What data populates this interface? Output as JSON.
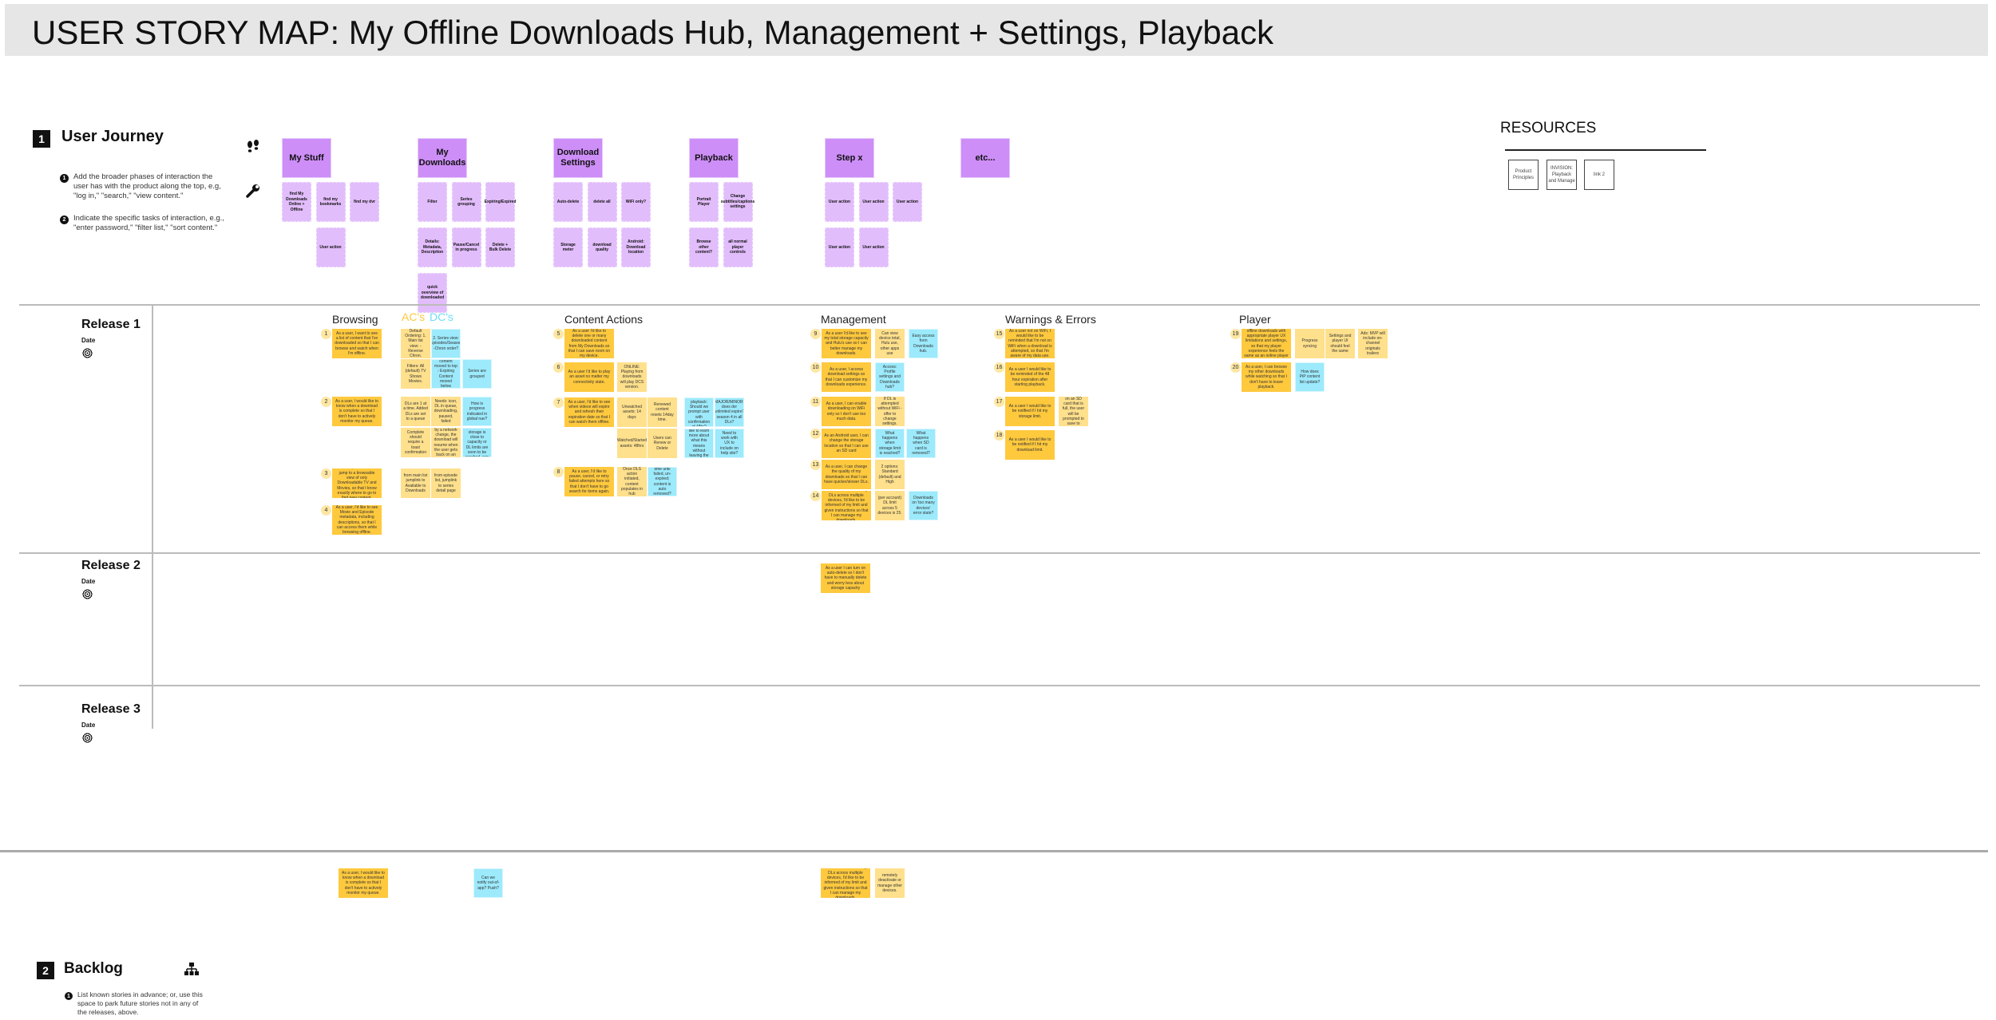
{
  "title": "USER STORY MAP: My Offline Downloads Hub, Management + Settings, Playback",
  "journey": {
    "number": "1",
    "title": "User Journey",
    "instructions": [
      {
        "n": "1",
        "text": "Add the broader phases of interaction the user has with the product along the top, e.g, \"log in,\" \"search,\" \"view content.\""
      },
      {
        "n": "2",
        "text": "Indicate the specific tasks of interaction, e.g., \"enter password,\" \"filter list,\" \"sort content.\""
      }
    ],
    "icons": [
      "footsteps-icon",
      "wrench-icon"
    ],
    "phases": [
      {
        "title": "My Stuff",
        "tasks": [
          "find My Downloads Online + Offline",
          "find my bookmarks",
          "find my dvr",
          "User action"
        ]
      },
      {
        "title": "My Downloads",
        "tasks": [
          "Filter",
          "Series grouping",
          "Expiring/Expired",
          "Details: Metadata, Description",
          "Pause/Cancel in progress",
          "Delete + Bulk Delete",
          "quick overview of downloaded"
        ]
      },
      {
        "title": "Download Settings",
        "tasks": [
          "Auto-delete",
          "delete all",
          "WiFi only?",
          "Storage meter",
          "download quality",
          "Android: Download location"
        ]
      },
      {
        "title": "Playback",
        "tasks": [
          "Portrait Player",
          "Change subtitles/captions settings",
          "Browse other content?",
          "all normal player controls"
        ]
      },
      {
        "title": "Step x",
        "tasks": [
          "User action",
          "User action",
          "User action",
          "User action",
          "User action"
        ]
      },
      {
        "title": "etc...",
        "tasks": []
      }
    ]
  },
  "resources": {
    "title": "RESOURCES",
    "links": [
      "Product Principles",
      "INVISION: Playback and Manage",
      "link 2"
    ]
  },
  "releases": [
    {
      "name": "Release 1",
      "date_label": "Date"
    },
    {
      "name": "Release 2",
      "date_label": "Date"
    },
    {
      "name": "Release 3",
      "date_label": "Date"
    }
  ],
  "legend": {
    "ac_label": "AC's",
    "dc_label": "DC's",
    "ac_color": "#ffc93e",
    "dc_color": "#6fdcf7"
  },
  "release1": {
    "sections": [
      {
        "title": "Browsing",
        "stories": [
          {
            "num": "1",
            "text": "As a user, I want to see a list of content that I've downloaded so that I can browse and watch when I'm offline.",
            "notes": [
              {
                "type": "ac",
                "text": "Default Ordering: 1. Main list view: - Reverse Chron."
              },
              {
                "type": "dc",
                "text": "2. Series view: Episodes/Season -Chron order?"
              },
              {
                "type": "ac",
                "text": "Filters: All (default) TV Shows Movies."
              },
              {
                "type": "dc",
                "text": "- Expired content moved to top - Expiring Content moved below Expired."
              },
              {
                "type": "dc",
                "text": "Series are grouped"
              }
            ]
          },
          {
            "num": "2",
            "text": "As a user, I would like to know when a download is complete so that I don't have to actively monitor my queue.",
            "notes": [
              {
                "type": "ac",
                "text": "DLs are 1 at a time. Added DLs are set to a queue"
              },
              {
                "type": "ac",
                "text": "Needs: icon, DL in queue, downloading, paused, failed"
              },
              {
                "type": "dc",
                "text": "How is progress indicated in global nav?"
              },
              {
                "type": "ac",
                "text": "Complete should require a toast confirmation"
              },
              {
                "type": "ac",
                "text": "If a download is interrupted by a network change, the download will resume when the user gets back on an eligible network."
              },
              {
                "type": "dc",
                "text": "(major gotcha): if storage is close to capacity or DL limits are soon to be reached, can we tell user?"
              }
            ]
          },
          {
            "num": "3",
            "text": "As a user, I would like to jump to a browsable view of only Downloadable TV and Movies, so that I know exactly where to go to find new content.",
            "notes": [
              {
                "type": "ac",
                "text": "from main list jumplink to Available to Downloads"
              },
              {
                "type": "ac",
                "text": "from episode list, jumplink to series detail page"
              }
            ]
          },
          {
            "num": "4",
            "text": "As a user, I'd like to see Movie and Episode metadata, including descriptions, so that I can access them while browsing offline.",
            "notes": []
          }
        ]
      },
      {
        "title": "Content Actions",
        "stories": [
          {
            "num": "5",
            "text": "As a user I'd like to delete one or many downloaded content from My Downloads so that I can save room on my device.",
            "notes": []
          },
          {
            "num": "6",
            "text": "As a user I'd like to play an asset no matter my connectivity state.",
            "notes": [
              {
                "type": "ac",
                "text": "ONLINE: Playing from downloads will play DCS version."
              }
            ]
          },
          {
            "num": "7",
            "text": "As a user, I'd like to see when videos will expire and refresh their expiration date so that I can watch them offline.",
            "notes": [
              {
                "type": "ac",
                "text": "Unwatched assets: 14 days"
              },
              {
                "type": "ac",
                "text": "Renewed content resets 14day time."
              },
              {
                "type": "ac",
                "text": "Watched/Started assets: 48hrs"
              },
              {
                "type": "ac",
                "text": "Users can Renew or Delete"
              },
              {
                "type": "dc",
                "text": "1st time playback: Should we prompt user with confirmation of 48hr?"
              },
              {
                "type": "dc",
                "text": "[MAJOR/MINOR]: does dvr unlimited expire? season 4 in all DLs?"
              },
              {
                "type": "dc",
                "text": "As a user, I'd like to learn more about what this means without leaving the app."
              },
              {
                "type": "dc",
                "text": "Need to work with UX to include on help site?"
              }
            ]
          },
          {
            "num": "8",
            "text": "As a user, I'd like to pause, cancel, or retry failed attempts here so that I don't have to go search for items again.",
            "notes": [
              {
                "type": "ac",
                "text": "Once DLS action initiated, content populates in hub"
              },
              {
                "type": "dc",
                "text": "time until failed, un-expired; content is auto removed?"
              }
            ]
          }
        ]
      },
      {
        "title": "Management",
        "stories": [
          {
            "num": "9",
            "text": "As a user I'd like to see my total storage capacity and Hulu's use so I can better manage my downloads.",
            "notes": [
              {
                "type": "ac",
                "text": "Can view device total, Hulu use, other apps use"
              },
              {
                "type": "dc",
                "text": "Easy access from Downloads hub."
              }
            ]
          },
          {
            "num": "10",
            "text": "As a user, I access download settings so that I can customize my downloads experience.",
            "notes": [
              {
                "type": "dc",
                "text": "Access: Profile settings and Downloads hub?"
              }
            ]
          },
          {
            "num": "11",
            "text": "As a user, I can enable downloading on WiFi only so I don't use too much data.",
            "notes": [
              {
                "type": "ac",
                "text": "If DL is attempted without WiFi - offer to change settings."
              }
            ]
          },
          {
            "num": "12",
            "text": "As an Android user, I can change the storage location so that I can use an SD card",
            "notes": [
              {
                "type": "dc",
                "text": "What happens when storage limit is reached?"
              },
              {
                "type": "dc",
                "text": "What happens when SD card is removed?"
              }
            ]
          },
          {
            "num": "13",
            "text": "As a user, I can change the quality of my downloads so that I can have quicker/slower DLs.",
            "notes": [
              {
                "type": "ac",
                "text": "2 options: Standard (default) and High"
              }
            ]
          },
          {
            "num": "14",
            "text": "As a user with too many DLs across multiple devices, I'd like to be informed of my limit and given instructions so that I can manage my downloads.",
            "notes": [
              {
                "type": "ac",
                "text": "(per account) DL limit across 5 devices is 25."
              },
              {
                "type": "dc",
                "text": "Downloads on 'too many devices' error state?"
              }
            ]
          }
        ]
      },
      {
        "title": "Warnings & Errors",
        "stories": [
          {
            "num": "15",
            "text": "As a user not on WiFi, I would like to be reminded that I'm not on WiFi when a download is attempted, so that I'm aware of my data use.",
            "notes": []
          },
          {
            "num": "16",
            "text": "As a user I would like to be reminded of the 48 hour expiration after starting playback.",
            "notes": []
          },
          {
            "num": "17",
            "text": "As a user I would like to be notified if I hit my storage limit.",
            "notes": [
              {
                "type": "ac",
                "text": "If a download is attempted on an SD card that is full, the user will be prompted to save to internal storage"
              }
            ]
          },
          {
            "num": "18",
            "text": "As a user I would like to be notified if I hit my download limit.",
            "notes": []
          }
        ]
      },
      {
        "title": "Player",
        "stories": [
          {
            "num": "19",
            "text": "As a user, I can play offline downloads with appropriate player UX limitations and settings, so that my player experience feels the same as an online player experience.",
            "notes": [
              {
                "type": "ac",
                "text": "Progress syncing"
              },
              {
                "type": "ac",
                "text": "Settings and player UI should feel the same"
              },
              {
                "type": "ac",
                "text": "Ads: MVP will include on-channel originals trailers"
              }
            ]
          },
          {
            "num": "20",
            "text": "As a user, I can browse my other downloads while watching so that I don't have to leave playback.",
            "notes": [
              {
                "type": "dc",
                "text": "How does PiP content list update?"
              }
            ]
          }
        ]
      }
    ]
  },
  "release2": {
    "stories": [
      {
        "text": "As a user I can turn on auto-delete so I don't have to manually delete and worry less about storage capacity"
      }
    ]
  },
  "backlog": {
    "number": "2",
    "title": "Backlog",
    "instruction_num": "1",
    "instruction": "List known stories in advance; or, use this space to park future stories not in any of the releases, above.",
    "items": [
      {
        "type": "story",
        "text": "As a user, I would like to know when a download is complete so that I don't have to actively monitor my queue."
      },
      {
        "type": "dc",
        "text": "Can we notify out-of-app? Push?"
      },
      {
        "type": "story",
        "text": "As a user with too many DLs across multiple devices, I'd like to be informed of my limit and given instructions so that I can manage my downloads."
      },
      {
        "type": "ac",
        "text": "remotely deactivate or manage other devices."
      }
    ]
  }
}
